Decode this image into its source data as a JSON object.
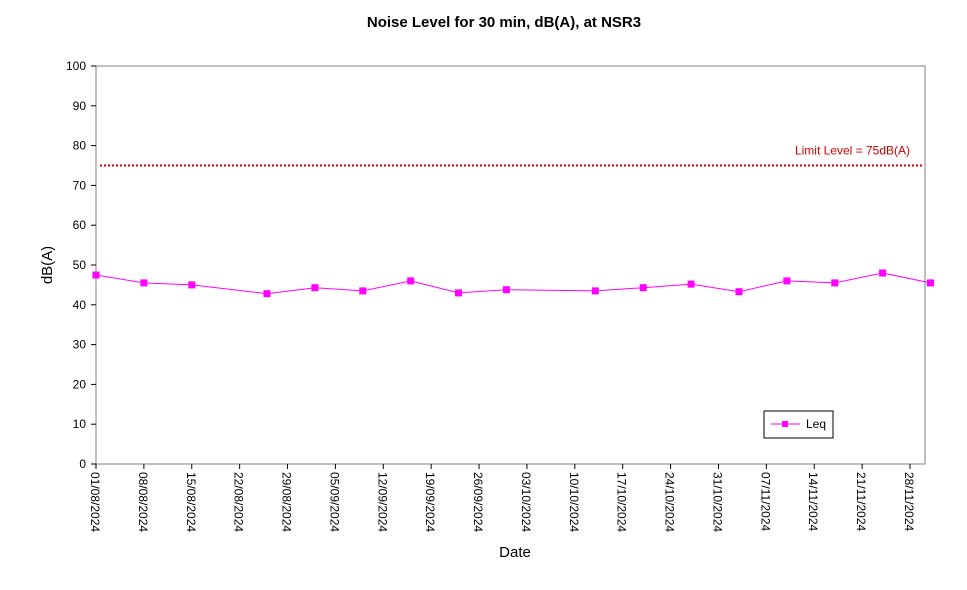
{
  "chart_data": {
    "type": "line",
    "title": "Noise Level for 30 min, dB(A), at NSR3",
    "xlabel": "Date",
    "ylabel": "dB(A)",
    "ylim": [
      0,
      100
    ],
    "yticks": [
      "0",
      "10",
      "20",
      "30",
      "40",
      "50",
      "60",
      "70",
      "80",
      "90",
      "100"
    ],
    "xlim": [
      "2024-08-01",
      "2024-11-28"
    ],
    "xticks": [
      "01/08/2024",
      "08/08/2024",
      "15/08/2024",
      "22/08/2024",
      "29/08/2024",
      "05/09/2024",
      "12/09/2024",
      "19/09/2024",
      "26/09/2024",
      "03/10/2024",
      "10/10/2024",
      "17/10/2024",
      "24/10/2024",
      "31/10/2024",
      "07/11/2024",
      "14/11/2024",
      "21/11/2024",
      "28/11/2024"
    ],
    "grid": false,
    "legend": "bottom-right",
    "series": [
      {
        "name": "Leq",
        "color": "#ff00ff",
        "marker": "square",
        "x": [
          "2024-08-01",
          "2024-08-08",
          "2024-08-15",
          "2024-08-26",
          "2024-09-02",
          "2024-09-09",
          "2024-09-16",
          "2024-09-23",
          "2024-09-30",
          "2024-10-13",
          "2024-10-20",
          "2024-10-27",
          "2024-11-03",
          "2024-11-10",
          "2024-11-17",
          "2024-11-24",
          "2024-12-01"
        ],
        "y": [
          47.5,
          45.5,
          45.0,
          42.8,
          44.3,
          43.5,
          46.0,
          43.0,
          43.8,
          43.5,
          44.3,
          45.2,
          43.3,
          46.0,
          45.5,
          48.0,
          45.5
        ]
      }
    ],
    "limit_line": {
      "label": "Limit Level  = 75dB(A)",
      "value": 75,
      "color": "#cc0000",
      "style": "dotted"
    }
  }
}
